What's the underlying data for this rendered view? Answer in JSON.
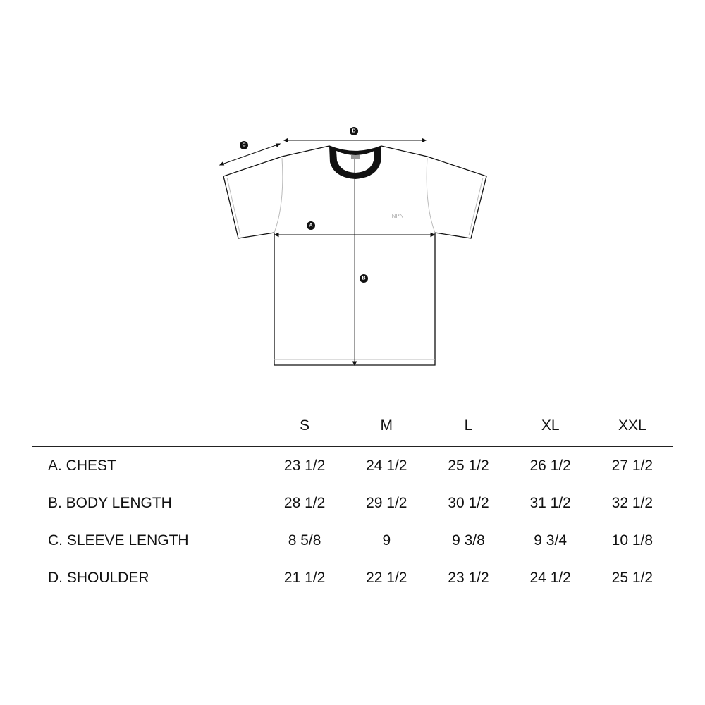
{
  "diagram": {
    "markers": {
      "a": "A",
      "b": "B",
      "c": "C",
      "d": "D"
    },
    "logo": "NPN"
  },
  "table": {
    "sizes": [
      "S",
      "M",
      "L",
      "XL",
      "XXL"
    ],
    "rows": [
      {
        "label": "A. CHEST",
        "values": [
          "23 1/2",
          "24 1/2",
          "25 1/2",
          "26 1/2",
          "27 1/2"
        ]
      },
      {
        "label": "B. BODY LENGTH",
        "values": [
          "28 1/2",
          "29 1/2",
          "30 1/2",
          "31 1/2",
          "32 1/2"
        ]
      },
      {
        "label": "C. SLEEVE LENGTH",
        "values": [
          "8 5/8",
          "9",
          "9 3/8",
          "9 3/4",
          "10 1/8"
        ]
      },
      {
        "label": "D. SHOULDER",
        "values": [
          "21 1/2",
          "22 1/2",
          "23 1/2",
          "24 1/2",
          "25 1/2"
        ]
      }
    ]
  }
}
